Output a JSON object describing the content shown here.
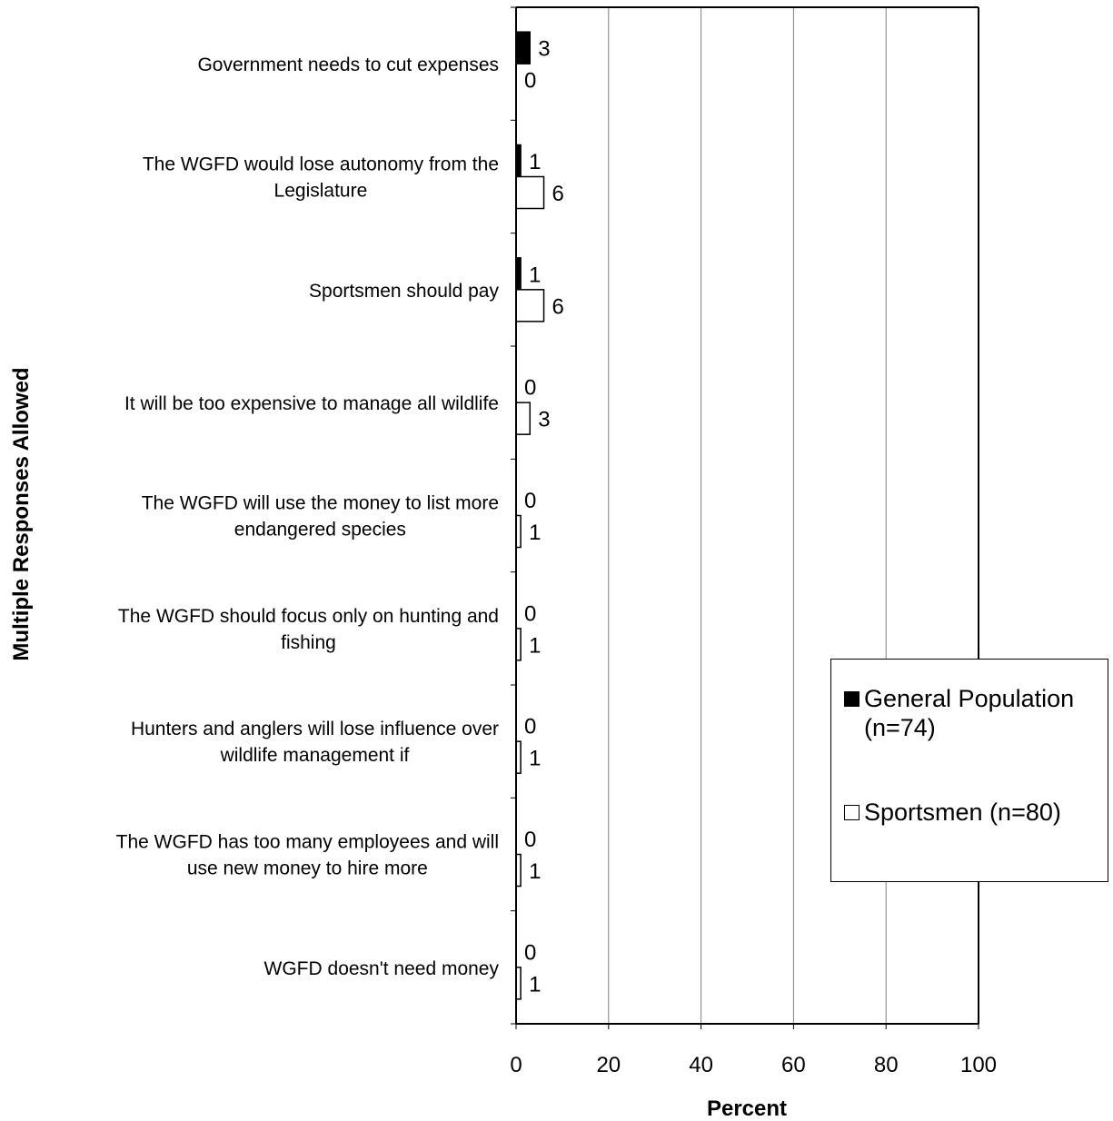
{
  "chart_data": {
    "type": "bar",
    "orientation": "horizontal",
    "categories": [
      "Government needs to cut expenses",
      "The WGFD would lose autonomy from the Legislature",
      "Sportsmen should pay",
      "It will be too expensive to manage all wildlife",
      "The WGFD will use the money to list more endangered species",
      "The WGFD should focus only on hunting and fishing",
      "Hunters and anglers will lose influence over wildlife management if",
      "The WGFD has too many employees and will use new money to hire more",
      "WGFD doesn't need money"
    ],
    "category_lines": [
      [
        "Government needs to cut expenses"
      ],
      [
        "The WGFD would lose autonomy from the",
        "Legislature"
      ],
      [
        "Sportsmen should pay"
      ],
      [
        "It will be too expensive to manage all wildlife"
      ],
      [
        "The WGFD will use the money to list more",
        "endangered species"
      ],
      [
        "The WGFD should focus only on hunting and",
        "fishing"
      ],
      [
        "Hunters and anglers will lose influence over",
        "wildlife management if"
      ],
      [
        "The WGFD has too many employees and will",
        "use new money to hire more"
      ],
      [
        "WGFD doesn't need money"
      ]
    ],
    "series": [
      {
        "name": "General Population (n=74)",
        "name_lines": [
          "General Population",
          "(n=74)"
        ],
        "color": "#000000",
        "values": [
          3,
          1,
          1,
          0,
          0,
          0,
          0,
          0,
          0
        ]
      },
      {
        "name": "Sportsmen (n=80)",
        "name_lines": [
          "Sportsmen (n=80)"
        ],
        "color": "#ffffff",
        "values": [
          0,
          6,
          6,
          3,
          1,
          1,
          1,
          1,
          1
        ]
      }
    ],
    "xlabel": "Percent",
    "ylabel": "Multiple Responses Allowed",
    "xlim": [
      0,
      100
    ],
    "xticks": [
      0,
      20,
      40,
      60,
      80,
      100
    ],
    "grid": true,
    "legend_position": "right"
  }
}
